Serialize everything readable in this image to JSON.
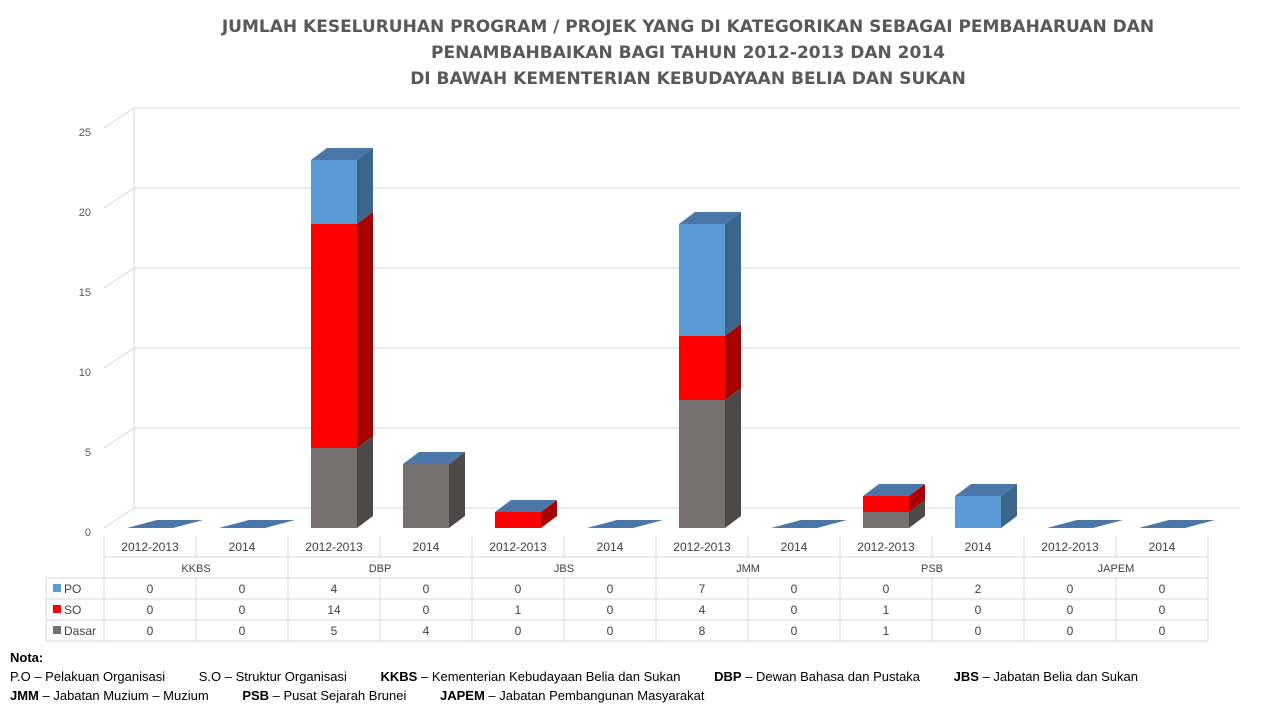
{
  "chart_data": {
    "type": "bar",
    "stacked": true,
    "three_d": true,
    "title_lines": [
      "JUMLAH KESELURUHAN PROGRAM / PROJEK YANG DI KATEGORIKAN SEBAGAI PEMBAHARUAN DAN",
      "PENAMBAHBAIKAN BAGI TAHUN 2012-2013 DAN 2014",
      "DI BAWAH KEMENTERIAN KEBUDAYAAN BELIA DAN SUKAN"
    ],
    "groups": [
      "KKBS",
      "DBP",
      "JBS",
      "JMM",
      "PSB",
      "JAPEM"
    ],
    "subcategories": [
      "2012-2013",
      "2014"
    ],
    "series": [
      {
        "name": "Dasar",
        "color": "#767171",
        "values": [
          0,
          0,
          5,
          4,
          0,
          0,
          8,
          0,
          1,
          0,
          0,
          0
        ]
      },
      {
        "name": "SO",
        "color": "#ff0000",
        "values": [
          0,
          0,
          14,
          0,
          1,
          0,
          4,
          0,
          1,
          0,
          0,
          0
        ]
      },
      {
        "name": "PO",
        "color": "#5b9bd5",
        "values": [
          0,
          0,
          4,
          0,
          0,
          0,
          7,
          0,
          0,
          2,
          0,
          0
        ]
      }
    ],
    "table_order": [
      "PO",
      "SO",
      "Dasar"
    ],
    "ylim": [
      0,
      25
    ],
    "yticks": [
      0,
      5,
      10,
      15,
      20,
      25
    ],
    "grid": true,
    "legend": "data table below chart"
  },
  "notes": {
    "label": "Nota:",
    "items": [
      {
        "abbr": "P.O",
        "text": "Pelakuan Organisasi",
        "bold": false
      },
      {
        "abbr": "S.O",
        "text": "Struktur Organisasi",
        "bold": false
      },
      {
        "abbr": "KKBS",
        "text": "Kementerian Kebudayaan Belia dan Sukan",
        "bold": true
      },
      {
        "abbr": "DBP",
        "text": "Dewan Bahasa dan Pustaka",
        "bold": true
      },
      {
        "abbr": "JBS",
        "text": "Jabatan Belia dan Sukan",
        "bold": true
      },
      {
        "abbr": "JMM",
        "text": "Jabatan Muzium – Muzium",
        "bold": true
      },
      {
        "abbr": "PSB",
        "text": "Pusat Sejarah Brunei",
        "bold": true
      },
      {
        "abbr": "JAPEM",
        "text": "Jabatan Pembangunan Masyarakat",
        "bold": true
      }
    ]
  }
}
